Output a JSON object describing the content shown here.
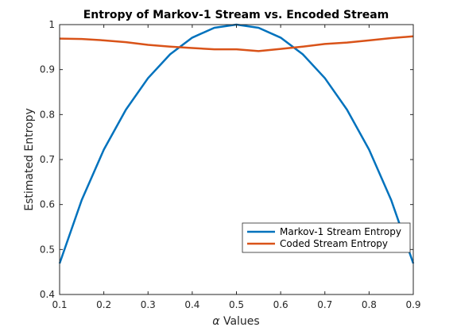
{
  "chart_data": {
    "type": "line",
    "title": "Entropy of Markov-1 Stream vs. Encoded Stream",
    "xlabel_symbol": "α",
    "xlabel_text": " Values",
    "ylabel": "Estimated Entropy",
    "xlim": [
      0.1,
      0.9
    ],
    "ylim": [
      0.4,
      1.0
    ],
    "xticks": [
      "0.1",
      "0.2",
      "0.3",
      "0.4",
      "0.5",
      "0.6",
      "0.7",
      "0.8",
      "0.9"
    ],
    "yticks": [
      "0.4",
      "0.5",
      "0.6",
      "0.7",
      "0.8",
      "0.9",
      "1"
    ],
    "grid": false,
    "legend_position": "lower-right",
    "series": [
      {
        "name": "Markov-1 Stream Entropy",
        "color": "#0072BD",
        "x": [
          0.1,
          0.15,
          0.2,
          0.25,
          0.3,
          0.35,
          0.4,
          0.45,
          0.5,
          0.55,
          0.6,
          0.65,
          0.7,
          0.75,
          0.8,
          0.85,
          0.9
        ],
        "y": [
          0.469,
          0.61,
          0.722,
          0.811,
          0.881,
          0.934,
          0.971,
          0.993,
          1.0,
          0.993,
          0.971,
          0.934,
          0.881,
          0.811,
          0.722,
          0.61,
          0.469
        ]
      },
      {
        "name": "Coded Stream Entropy",
        "color": "#D95319",
        "x": [
          0.1,
          0.15,
          0.2,
          0.25,
          0.3,
          0.35,
          0.4,
          0.45,
          0.5,
          0.55,
          0.6,
          0.65,
          0.7,
          0.75,
          0.8,
          0.85,
          0.9
        ],
        "y": [
          0.969,
          0.968,
          0.965,
          0.961,
          0.955,
          0.951,
          0.948,
          0.945,
          0.945,
          0.941,
          0.946,
          0.951,
          0.957,
          0.96,
          0.965,
          0.97,
          0.974
        ]
      }
    ]
  }
}
